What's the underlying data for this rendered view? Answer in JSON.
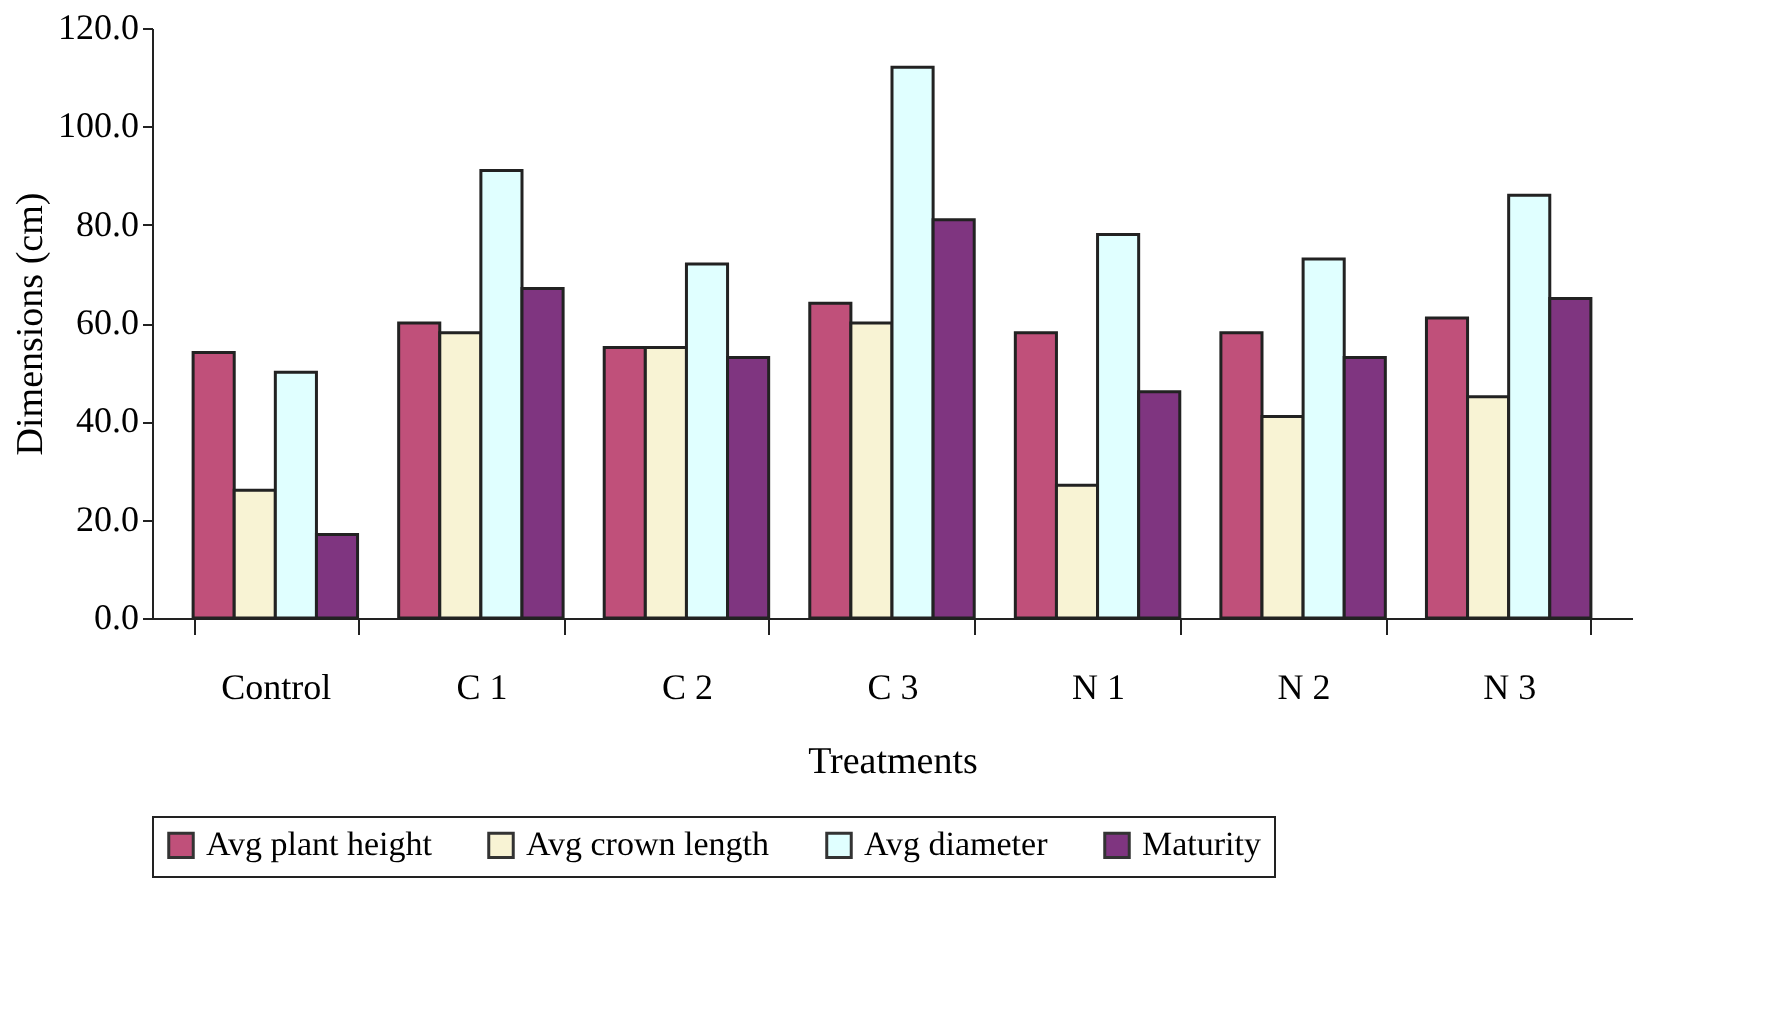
{
  "chart_data": {
    "type": "bar",
    "xlabel": "Treatments",
    "ylabel": "Dimensions (cm)",
    "categories": [
      "Control",
      "C 1",
      "C 2",
      "C 3",
      "N 1",
      "N 2",
      "N 3"
    ],
    "series": [
      {
        "name": "Avg plant height",
        "color": "#c0507a",
        "values": [
          54,
          60,
          55,
          64,
          58,
          58,
          61
        ]
      },
      {
        "name": "Avg crown length",
        "color": "#f8f3d4",
        "values": [
          26,
          58,
          55,
          60,
          27,
          41,
          45
        ]
      },
      {
        "name": "Avg diameter",
        "color": "#e0ffff",
        "values": [
          50,
          91,
          72,
          112,
          78,
          73,
          86
        ]
      },
      {
        "name": "Maturity",
        "color": "#7f3580",
        "values": [
          17,
          67,
          53,
          81,
          46,
          53,
          65
        ]
      }
    ],
    "ylim": [
      0,
      120
    ],
    "yticks": [
      {
        "value": 0,
        "label": "0.0"
      },
      {
        "value": 20,
        "label": "20.0"
      },
      {
        "value": 40,
        "label": "40.0"
      },
      {
        "value": 60,
        "label": "60.0"
      },
      {
        "value": 80,
        "label": "80.0"
      },
      {
        "value": 100,
        "label": "100.0"
      },
      {
        "value": 120,
        "label": "120.0"
      }
    ],
    "grid": false,
    "legend": "bottom"
  }
}
